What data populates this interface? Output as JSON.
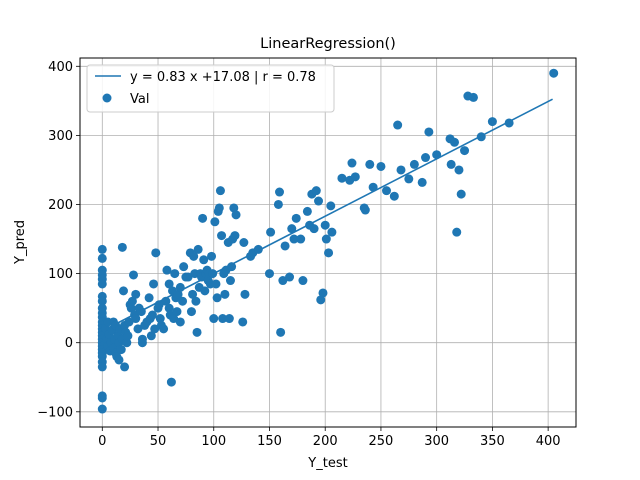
{
  "chart_data": {
    "type": "scatter",
    "title": "LinearRegression()",
    "xlabel": "Y_test",
    "ylabel": "Y_pred",
    "xlim": [
      -20,
      425
    ],
    "ylim": [
      -122,
      412
    ],
    "xticks": [
      0,
      50,
      100,
      150,
      200,
      250,
      300,
      350,
      400
    ],
    "yticks": [
      -100,
      0,
      100,
      200,
      300,
      400
    ],
    "grid": true,
    "legend_position": "top-left",
    "colors": {
      "series": "#1f77b4",
      "grid": "#b0b0b0"
    },
    "fit_line": {
      "name": "y = 0.83 x +17.08 | r = 0.78",
      "slope": 0.83,
      "intercept": 17.08,
      "x_start": 0,
      "x_end": 404
    },
    "series": [
      {
        "name": "Val",
        "points": [
          [
            0,
            135
          ],
          [
            0,
            122
          ],
          [
            0,
            105
          ],
          [
            0,
            98
          ],
          [
            0,
            92
          ],
          [
            0,
            85
          ],
          [
            0,
            67
          ],
          [
            0,
            60
          ],
          [
            0,
            50
          ],
          [
            0,
            43
          ],
          [
            0,
            37
          ],
          [
            0,
            30
          ],
          [
            0,
            25
          ],
          [
            0,
            20
          ],
          [
            0,
            15
          ],
          [
            0,
            10
          ],
          [
            0,
            5
          ],
          [
            0,
            0
          ],
          [
            0,
            -5
          ],
          [
            0,
            -10
          ],
          [
            0,
            -15
          ],
          [
            0,
            -20
          ],
          [
            0,
            -28
          ],
          [
            0,
            -35
          ],
          [
            0,
            -77
          ],
          [
            0,
            -80
          ],
          [
            0,
            -96
          ],
          [
            3,
            20
          ],
          [
            4,
            5
          ],
          [
            5,
            -5
          ],
          [
            5,
            30
          ],
          [
            6,
            12
          ],
          [
            7,
            -12
          ],
          [
            8,
            0
          ],
          [
            9,
            18
          ],
          [
            10,
            -8
          ],
          [
            10,
            30
          ],
          [
            11,
            5
          ],
          [
            12,
            -15
          ],
          [
            12,
            25
          ],
          [
            13,
            -20
          ],
          [
            14,
            10
          ],
          [
            15,
            0
          ],
          [
            15,
            -25
          ],
          [
            16,
            20
          ],
          [
            17,
            -10
          ],
          [
            18,
            5
          ],
          [
            18,
            138
          ],
          [
            19,
            75
          ],
          [
            20,
            -35
          ],
          [
            20,
            25
          ],
          [
            21,
            15
          ],
          [
            22,
            0
          ],
          [
            23,
            10
          ],
          [
            24,
            30
          ],
          [
            25,
            55
          ],
          [
            26,
            50
          ],
          [
            27,
            60
          ],
          [
            28,
            98
          ],
          [
            29,
            40
          ],
          [
            30,
            70
          ],
          [
            30,
            35
          ],
          [
            32,
            20
          ],
          [
            33,
            50
          ],
          [
            35,
            45
          ],
          [
            36,
            5
          ],
          [
            36,
            0
          ],
          [
            38,
            25
          ],
          [
            40,
            30
          ],
          [
            42,
            65
          ],
          [
            43,
            35
          ],
          [
            44,
            10
          ],
          [
            45,
            40
          ],
          [
            46,
            85
          ],
          [
            47,
            20
          ],
          [
            48,
            130
          ],
          [
            50,
            50
          ],
          [
            51,
            55
          ],
          [
            52,
            35
          ],
          [
            53,
            25
          ],
          [
            55,
            20
          ],
          [
            57,
            60
          ],
          [
            58,
            105
          ],
          [
            60,
            85
          ],
          [
            60,
            50
          ],
          [
            61,
            40
          ],
          [
            62,
            -57
          ],
          [
            63,
            75
          ],
          [
            64,
            35
          ],
          [
            65,
            100
          ],
          [
            66,
            65
          ],
          [
            67,
            45
          ],
          [
            68,
            70
          ],
          [
            70,
            30
          ],
          [
            70,
            80
          ],
          [
            72,
            60
          ],
          [
            73,
            110
          ],
          [
            75,
            95
          ],
          [
            77,
            95
          ],
          [
            79,
            130
          ],
          [
            80,
            45
          ],
          [
            81,
            70
          ],
          [
            82,
            125
          ],
          [
            83,
            100
          ],
          [
            84,
            60
          ],
          [
            85,
            15
          ],
          [
            86,
            135
          ],
          [
            87,
            80
          ],
          [
            88,
            100
          ],
          [
            89,
            95
          ],
          [
            90,
            180
          ],
          [
            91,
            120
          ],
          [
            92,
            75
          ],
          [
            93,
            100
          ],
          [
            94,
            105
          ],
          [
            95,
            90
          ],
          [
            96,
            100
          ],
          [
            97,
            85
          ],
          [
            98,
            125
          ],
          [
            99,
            100
          ],
          [
            100,
            35
          ],
          [
            101,
            175
          ],
          [
            102,
            85
          ],
          [
            103,
            65
          ],
          [
            104,
            190
          ],
          [
            105,
            195
          ],
          [
            106,
            220
          ],
          [
            107,
            155
          ],
          [
            108,
            35
          ],
          [
            109,
            100
          ],
          [
            110,
            70
          ],
          [
            111,
            105
          ],
          [
            113,
            145
          ],
          [
            114,
            35
          ],
          [
            115,
            90
          ],
          [
            116,
            110
          ],
          [
            117,
            150
          ],
          [
            118,
            195
          ],
          [
            119,
            155
          ],
          [
            120,
            185
          ],
          [
            126,
            30
          ],
          [
            127,
            145
          ],
          [
            128,
            70
          ],
          [
            133,
            125
          ],
          [
            135,
            130
          ],
          [
            140,
            135
          ],
          [
            150,
            100
          ],
          [
            151,
            160
          ],
          [
            158,
            200
          ],
          [
            159,
            218
          ],
          [
            160,
            15
          ],
          [
            162,
            90
          ],
          [
            164,
            140
          ],
          [
            168,
            95
          ],
          [
            170,
            165
          ],
          [
            172,
            150
          ],
          [
            174,
            180
          ],
          [
            178,
            150
          ],
          [
            180,
            90
          ],
          [
            184,
            190
          ],
          [
            186,
            170
          ],
          [
            188,
            215
          ],
          [
            190,
            165
          ],
          [
            192,
            220
          ],
          [
            194,
            205
          ],
          [
            196,
            62
          ],
          [
            198,
            72
          ],
          [
            200,
            170
          ],
          [
            201,
            150
          ],
          [
            203,
            130
          ],
          [
            205,
            198
          ],
          [
            206,
            160
          ],
          [
            215,
            238
          ],
          [
            222,
            235
          ],
          [
            224,
            260
          ],
          [
            227,
            240
          ],
          [
            235,
            195
          ],
          [
            236,
            192
          ],
          [
            240,
            258
          ],
          [
            243,
            225
          ],
          [
            250,
            255
          ],
          [
            255,
            220
          ],
          [
            262,
            212
          ],
          [
            265,
            315
          ],
          [
            268,
            250
          ],
          [
            275,
            237
          ],
          [
            280,
            258
          ],
          [
            287,
            232
          ],
          [
            290,
            268
          ],
          [
            293,
            305
          ],
          [
            300,
            272
          ],
          [
            312,
            295
          ],
          [
            313,
            258
          ],
          [
            316,
            290
          ],
          [
            318,
            160
          ],
          [
            320,
            250
          ],
          [
            322,
            215
          ],
          [
            325,
            278
          ],
          [
            328,
            357
          ],
          [
            333,
            355
          ],
          [
            340,
            298
          ],
          [
            350,
            320
          ],
          [
            365,
            318
          ],
          [
            405,
            390
          ]
        ]
      }
    ]
  }
}
